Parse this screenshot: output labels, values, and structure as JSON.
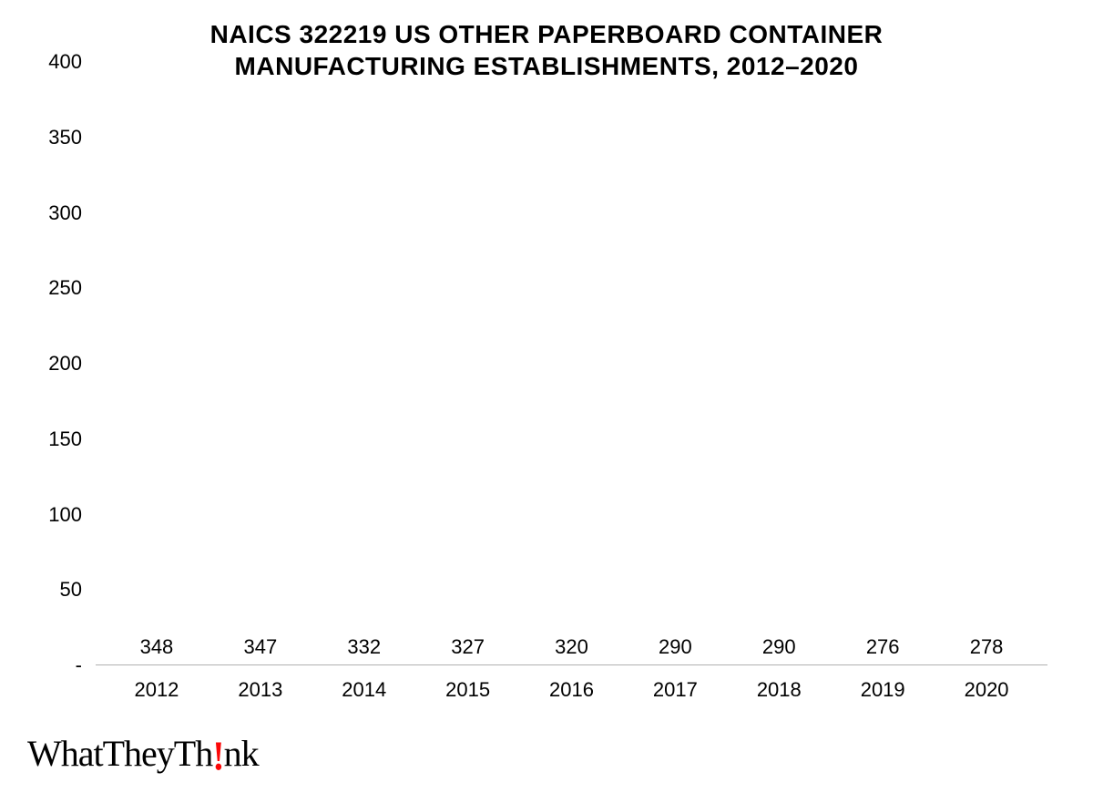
{
  "chart": {
    "type": "bar",
    "title_line1": "NAICS 322219 US OTHER PAPERBOARD CONTAINER",
    "title_line2": "MANUFACTURING ESTABLISHMENTS, 2012–2020",
    "title_fontsize": 28,
    "title_color": "#000000",
    "categories": [
      "2012",
      "2013",
      "2014",
      "2015",
      "2016",
      "2017",
      "2018",
      "2019",
      "2020"
    ],
    "values": [
      348,
      347,
      332,
      327,
      320,
      290,
      290,
      276,
      278
    ],
    "bar_color": "#fc0707",
    "ylim": [
      0,
      400
    ],
    "ytick_step": 50,
    "yticks": [
      "400",
      "350",
      "300",
      "250",
      "200",
      "150",
      "100",
      "50",
      "-"
    ],
    "ytick_positions": [
      400,
      350,
      300,
      250,
      200,
      150,
      100,
      50,
      0
    ],
    "background_color": "#ffffff",
    "axis_color": "#b0b0b0",
    "label_color": "#000000",
    "label_fontsize": 22,
    "xlabel_fontsize": 22,
    "bar_width_ratio": 0.88
  },
  "logo": {
    "text_before": "WhatTheyTh",
    "exclaim": "!",
    "text_after": "nk",
    "exclaim_color": "#fc0707"
  }
}
